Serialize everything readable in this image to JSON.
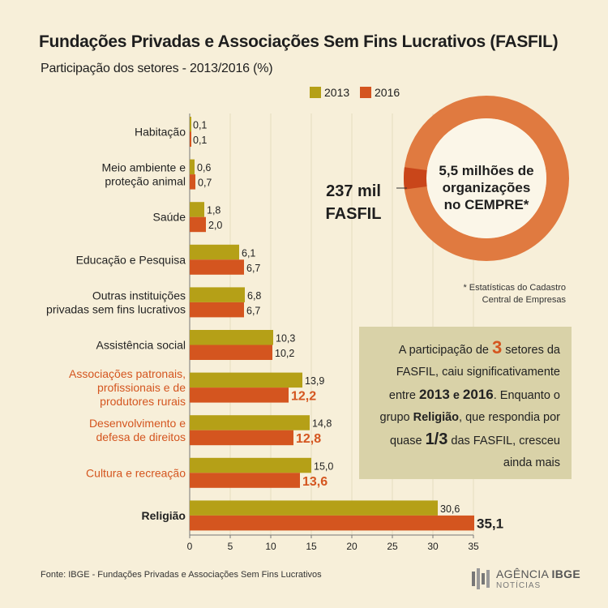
{
  "header": {
    "title": "Fundações Privadas e Associações Sem Fins Lucrativos (FASFIL)",
    "subtitle": "Participação dos setores - 2013/2016 (%)"
  },
  "colors": {
    "series_2013": "#b5a017",
    "series_2016": "#d4551f",
    "highlight_text": "#d4551f",
    "background": "#f7efd9",
    "callout_bg": "#d9d2a8"
  },
  "chart_data": {
    "type": "bar",
    "orientation": "horizontal",
    "title": "Fundações Privadas e Associações Sem Fins Lucrativos (FASFIL)",
    "subtitle": "Participação dos setores - 2013/2016 (%)",
    "categories": [
      [
        "Habitação"
      ],
      [
        "Meio ambiente e",
        "proteção animal"
      ],
      [
        "Saúde"
      ],
      [
        "Educação e Pesquisa"
      ],
      [
        "Outras instituições",
        "privadas sem fins lucrativos"
      ],
      [
        "Assistência social"
      ],
      [
        "Associações patronais,",
        "profissionais e de",
        "produtores rurais"
      ],
      [
        "Desenvolvimento e",
        "defesa de direitos"
      ],
      [
        "Cultura e recreação"
      ],
      [
        "Religião"
      ]
    ],
    "category_styles": [
      "normal",
      "normal",
      "normal",
      "normal",
      "normal",
      "normal",
      "highlight",
      "highlight",
      "highlight",
      "bold"
    ],
    "series": [
      {
        "name": "2013",
        "values": [
          0.1,
          0.6,
          1.8,
          6.1,
          6.8,
          10.3,
          13.9,
          14.8,
          15.0,
          30.6
        ],
        "labels": [
          "0,1",
          "0,6",
          "1,8",
          "6,1",
          "6,8",
          "10,3",
          "13,9",
          "14,8",
          "15,0",
          "30,6"
        ]
      },
      {
        "name": "2016",
        "values": [
          0.1,
          0.7,
          2.0,
          6.7,
          6.7,
          10.2,
          12.2,
          12.8,
          13.6,
          35.1
        ],
        "labels": [
          "0,1",
          "0,7",
          "2,0",
          "6,7",
          "6,7",
          "10,2",
          "12,2",
          "12,8",
          "13,6",
          "35,1"
        ]
      }
    ],
    "xlim": [
      0,
      35
    ],
    "xticks": [
      0,
      5,
      10,
      15,
      20,
      25,
      30,
      35
    ],
    "grid": true,
    "legend": "top"
  },
  "donut": {
    "total_value": 5.5,
    "fasfil_value": 0.237,
    "inner_lines": [
      "5,5 milhões de",
      "organizações",
      "no CEMPRE*"
    ],
    "fasfil_lines": [
      "237 mil",
      "FASFIL"
    ],
    "note_lines": [
      "* Estatísticas do Cadastro",
      "Central de Empresas"
    ]
  },
  "callout": {
    "p1": "A participação de ",
    "n1": "3",
    "p2": " setores da FASFIL, caiu significativamente entre ",
    "y1": "2013",
    "p3": " e ",
    "y2": "2016",
    "p4": ". Enquanto o grupo ",
    "g": "Religião",
    "p5": ", que respondia por quase ",
    "f": "1/3",
    "p6": " das FASFIL, cresceu ainda mais"
  },
  "footer": {
    "source": "Fonte: IBGE - Fundações Privadas e Associações Sem Fins Lucrativos",
    "logo_a": "AGÊNCIA",
    "logo_b": "IBGE",
    "logo_c": "NOTÍCIAS"
  }
}
